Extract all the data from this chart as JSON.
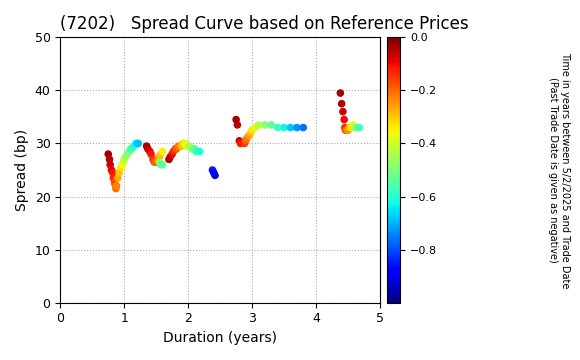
{
  "title": "(7202)   Spread Curve based on Reference Prices",
  "xlabel": "Duration (years)",
  "ylabel": "Spread (bp)",
  "colorbar_label": "Time in years between 5/2/2025 and Trade Date\n(Past Trade Date is given as negative)",
  "xlim": [
    0,
    5
  ],
  "ylim": [
    0,
    50
  ],
  "xticks": [
    0,
    1,
    2,
    3,
    4,
    5
  ],
  "yticks": [
    0,
    10,
    20,
    30,
    40,
    50
  ],
  "cmap": "jet",
  "vmin": -1.0,
  "vmax": 0.0,
  "colorbar_ticks": [
    0.0,
    -0.2,
    -0.4,
    -0.6,
    -0.8
  ],
  "scatter_data": [
    {
      "dur": 0.75,
      "spread": 28,
      "t": -0.03
    },
    {
      "dur": 0.77,
      "spread": 27,
      "t": -0.05
    },
    {
      "dur": 0.78,
      "spread": 26,
      "t": -0.06
    },
    {
      "dur": 0.8,
      "spread": 25,
      "t": -0.09
    },
    {
      "dur": 0.82,
      "spread": 24.5,
      "t": -0.11
    },
    {
      "dur": 0.83,
      "spread": 23.5,
      "t": -0.13
    },
    {
      "dur": 0.85,
      "spread": 23,
      "t": -0.15
    },
    {
      "dur": 0.85,
      "spread": 22.5,
      "t": -0.17
    },
    {
      "dur": 0.87,
      "spread": 22,
      "t": -0.19
    },
    {
      "dur": 0.87,
      "spread": 21.5,
      "t": -0.21
    },
    {
      "dur": 0.88,
      "spread": 22,
      "t": -0.23
    },
    {
      "dur": 0.9,
      "spread": 23.5,
      "t": -0.27
    },
    {
      "dur": 0.92,
      "spread": 24.5,
      "t": -0.3
    },
    {
      "dur": 0.95,
      "spread": 25.5,
      "t": -0.33
    },
    {
      "dur": 0.97,
      "spread": 26,
      "t": -0.36
    },
    {
      "dur": 0.99,
      "spread": 26.5,
      "t": -0.39
    },
    {
      "dur": 1.0,
      "spread": 27,
      "t": -0.42
    },
    {
      "dur": 1.02,
      "spread": 27.5,
      "t": -0.45
    },
    {
      "dur": 1.05,
      "spread": 28,
      "t": -0.48
    },
    {
      "dur": 1.08,
      "spread": 28.5,
      "t": -0.51
    },
    {
      "dur": 1.1,
      "spread": 29,
      "t": -0.54
    },
    {
      "dur": 1.12,
      "spread": 29,
      "t": -0.57
    },
    {
      "dur": 1.15,
      "spread": 29.5,
      "t": -0.6
    },
    {
      "dur": 1.18,
      "spread": 30,
      "t": -0.63
    },
    {
      "dur": 1.2,
      "spread": 30,
      "t": -0.66
    },
    {
      "dur": 1.22,
      "spread": 30,
      "t": -0.69
    },
    {
      "dur": 1.35,
      "spread": 29.5,
      "t": -0.03
    },
    {
      "dur": 1.37,
      "spread": 29,
      "t": -0.05
    },
    {
      "dur": 1.4,
      "spread": 28.5,
      "t": -0.08
    },
    {
      "dur": 1.42,
      "spread": 28,
      "t": -0.11
    },
    {
      "dur": 1.45,
      "spread": 27,
      "t": -0.14
    },
    {
      "dur": 1.47,
      "spread": 26.5,
      "t": -0.17
    },
    {
      "dur": 1.5,
      "spread": 26.5,
      "t": -0.2
    },
    {
      "dur": 1.52,
      "spread": 27,
      "t": -0.23
    },
    {
      "dur": 1.55,
      "spread": 27.5,
      "t": -0.27
    },
    {
      "dur": 1.57,
      "spread": 28,
      "t": -0.3
    },
    {
      "dur": 1.6,
      "spread": 28.5,
      "t": -0.35
    },
    {
      "dur": 1.55,
      "spread": 26.5,
      "t": -0.48
    },
    {
      "dur": 1.57,
      "spread": 26,
      "t": -0.51
    },
    {
      "dur": 1.6,
      "spread": 26,
      "t": -0.54
    },
    {
      "dur": 1.7,
      "spread": 27,
      "t": -0.03
    },
    {
      "dur": 1.72,
      "spread": 27.5,
      "t": -0.06
    },
    {
      "dur": 1.75,
      "spread": 28,
      "t": -0.1
    },
    {
      "dur": 1.77,
      "spread": 28.5,
      "t": -0.13
    },
    {
      "dur": 1.8,
      "spread": 29,
      "t": -0.16
    },
    {
      "dur": 1.82,
      "spread": 29,
      "t": -0.19
    },
    {
      "dur": 1.85,
      "spread": 29.5,
      "t": -0.22
    },
    {
      "dur": 1.88,
      "spread": 29.5,
      "t": -0.25
    },
    {
      "dur": 1.9,
      "spread": 29.5,
      "t": -0.29
    },
    {
      "dur": 1.92,
      "spread": 30,
      "t": -0.32
    },
    {
      "dur": 1.95,
      "spread": 30,
      "t": -0.35
    },
    {
      "dur": 1.97,
      "spread": 29.5,
      "t": -0.38
    },
    {
      "dur": 2.0,
      "spread": 29.5,
      "t": -0.41
    },
    {
      "dur": 2.02,
      "spread": 29.5,
      "t": -0.44
    },
    {
      "dur": 2.05,
      "spread": 29,
      "t": -0.47
    },
    {
      "dur": 2.08,
      "spread": 29,
      "t": -0.5
    },
    {
      "dur": 2.1,
      "spread": 29,
      "t": -0.53
    },
    {
      "dur": 2.12,
      "spread": 28.5,
      "t": -0.56
    },
    {
      "dur": 2.15,
      "spread": 28.5,
      "t": -0.59
    },
    {
      "dur": 2.18,
      "spread": 28.5,
      "t": -0.62
    },
    {
      "dur": 2.38,
      "spread": 25,
      "t": -0.85
    },
    {
      "dur": 2.4,
      "spread": 24.5,
      "t": -0.88
    },
    {
      "dur": 2.42,
      "spread": 24,
      "t": -0.91
    },
    {
      "dur": 2.75,
      "spread": 34.5,
      "t": -0.03
    },
    {
      "dur": 2.77,
      "spread": 33.5,
      "t": -0.05
    },
    {
      "dur": 2.8,
      "spread": 30.5,
      "t": -0.08
    },
    {
      "dur": 2.82,
      "spread": 30,
      "t": -0.11
    },
    {
      "dur": 2.88,
      "spread": 30,
      "t": -0.15
    },
    {
      "dur": 2.9,
      "spread": 30.5,
      "t": -0.19
    },
    {
      "dur": 2.92,
      "spread": 31,
      "t": -0.22
    },
    {
      "dur": 2.95,
      "spread": 31.5,
      "t": -0.26
    },
    {
      "dur": 2.98,
      "spread": 32,
      "t": -0.3
    },
    {
      "dur": 3.0,
      "spread": 32.5,
      "t": -0.33
    },
    {
      "dur": 3.05,
      "spread": 33,
      "t": -0.38
    },
    {
      "dur": 3.1,
      "spread": 33.5,
      "t": -0.43
    },
    {
      "dur": 3.2,
      "spread": 33.5,
      "t": -0.48
    },
    {
      "dur": 3.3,
      "spread": 33.5,
      "t": -0.53
    },
    {
      "dur": 3.4,
      "spread": 33,
      "t": -0.58
    },
    {
      "dur": 3.5,
      "spread": 33,
      "t": -0.63
    },
    {
      "dur": 3.6,
      "spread": 33,
      "t": -0.68
    },
    {
      "dur": 3.7,
      "spread": 33,
      "t": -0.73
    },
    {
      "dur": 3.8,
      "spread": 33,
      "t": -0.76
    },
    {
      "dur": 4.38,
      "spread": 39.5,
      "t": -0.03
    },
    {
      "dur": 4.4,
      "spread": 37.5,
      "t": -0.05
    },
    {
      "dur": 4.42,
      "spread": 36,
      "t": -0.07
    },
    {
      "dur": 4.44,
      "spread": 34.5,
      "t": -0.1
    },
    {
      "dur": 4.45,
      "spread": 33,
      "t": -0.13
    },
    {
      "dur": 4.46,
      "spread": 32.5,
      "t": -0.17
    },
    {
      "dur": 4.48,
      "spread": 32.5,
      "t": -0.21
    },
    {
      "dur": 4.5,
      "spread": 32.5,
      "t": -0.25
    },
    {
      "dur": 4.52,
      "spread": 33,
      "t": -0.29
    },
    {
      "dur": 4.55,
      "spread": 33,
      "t": -0.33
    },
    {
      "dur": 4.58,
      "spread": 33.5,
      "t": -0.37
    },
    {
      "dur": 4.6,
      "spread": 33,
      "t": -0.42
    },
    {
      "dur": 4.62,
      "spread": 33,
      "t": -0.47
    },
    {
      "dur": 4.65,
      "spread": 33,
      "t": -0.52
    },
    {
      "dur": 4.68,
      "spread": 33,
      "t": -0.57
    }
  ],
  "marker_size": 20,
  "bg_color": "#ffffff",
  "grid_color": "#aaaaaa",
  "title_fontsize": 12,
  "axis_fontsize": 10
}
